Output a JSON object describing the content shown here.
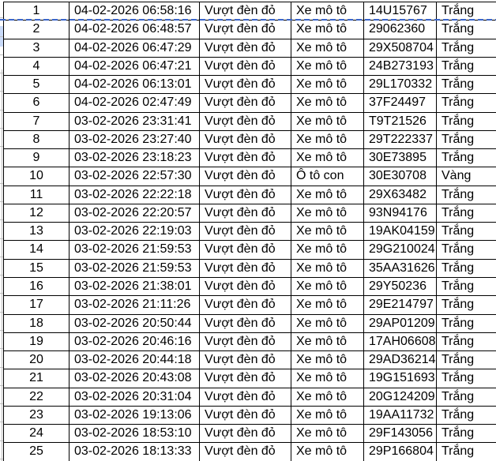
{
  "colors": {
    "grid_line": "#000000",
    "text": "#000000",
    "background": "#ffffff",
    "marquee_blue": "#3a66cc",
    "clipped_cell_blue": "#c9daf8",
    "clipped_line_gray": "#bfbfbf"
  },
  "table": {
    "rows": [
      {
        "index": "1",
        "datetime": "04-02-2026 06:58:16",
        "violation": "Vượt đèn đỏ",
        "vehicle_type": "Xe mô tô",
        "plate": "14U15767",
        "color": "Trắng"
      },
      {
        "index": "2",
        "datetime": "04-02-2026 06:48:57",
        "violation": "Vượt đèn đỏ",
        "vehicle_type": "Xe mô tô",
        "plate": "29062360",
        "color": "Trắng"
      },
      {
        "index": "3",
        "datetime": "04-02-2026 06:47:29",
        "violation": "Vượt đèn đỏ",
        "vehicle_type": "Xe mô tô",
        "plate": "29X508704",
        "color": "Trắng"
      },
      {
        "index": "4",
        "datetime": "04-02-2026 06:47:21",
        "violation": "Vượt đèn đỏ",
        "vehicle_type": "Xe mô tô",
        "plate": "24B273193",
        "color": "Trắng"
      },
      {
        "index": "5",
        "datetime": "04-02-2026 06:13:01",
        "violation": "Vượt đèn đỏ",
        "vehicle_type": "Xe mô tô",
        "plate": "29L170332",
        "color": "Trắng"
      },
      {
        "index": "6",
        "datetime": "04-02-2026 02:47:49",
        "violation": "Vượt đèn đỏ",
        "vehicle_type": "Xe mô tô",
        "plate": "37F24497",
        "color": "Trắng"
      },
      {
        "index": "7",
        "datetime": "03-02-2026 23:31:41",
        "violation": "Vượt đèn đỏ",
        "vehicle_type": "Xe mô tô",
        "plate": "T9T21526",
        "color": "Trắng"
      },
      {
        "index": "8",
        "datetime": "03-02-2026 23:27:40",
        "violation": "Vượt đèn đỏ",
        "vehicle_type": "Xe mô tô",
        "plate": "29T222337",
        "color": "Trắng"
      },
      {
        "index": "9",
        "datetime": "03-02-2026 23:18:23",
        "violation": "Vượt đèn đỏ",
        "vehicle_type": "Xe mô tô",
        "plate": "30E73895",
        "color": "Trắng"
      },
      {
        "index": "10",
        "datetime": "03-02-2026 22:57:30",
        "violation": "Vượt đèn đỏ",
        "vehicle_type": "Ô tô con",
        "plate": "30E30708",
        "color": "Vàng"
      },
      {
        "index": "11",
        "datetime": "03-02-2026 22:22:18",
        "violation": "Vượt đèn đỏ",
        "vehicle_type": "Xe mô tô",
        "plate": "29X63482",
        "color": "Trắng"
      },
      {
        "index": "12",
        "datetime": "03-02-2026 22:20:57",
        "violation": "Vượt đèn đỏ",
        "vehicle_type": "Xe mô tô",
        "plate": "93N94176",
        "color": "Trắng"
      },
      {
        "index": "13",
        "datetime": "03-02-2026 22:19:03",
        "violation": "Vượt đèn đỏ",
        "vehicle_type": "Xe mô tô",
        "plate": "19AK04159",
        "color": "Trắng"
      },
      {
        "index": "14",
        "datetime": "03-02-2026 21:59:53",
        "violation": "Vượt đèn đỏ",
        "vehicle_type": "Xe mô tô",
        "plate": "29G210024",
        "color": "Trắng"
      },
      {
        "index": "15",
        "datetime": "03-02-2026 21:59:53",
        "violation": "Vượt đèn đỏ",
        "vehicle_type": "Xe mô tô",
        "plate": "35AA31626",
        "color": "Trắng"
      },
      {
        "index": "16",
        "datetime": "03-02-2026 21:38:01",
        "violation": "Vượt đèn đỏ",
        "vehicle_type": "Xe mô tô",
        "plate": "29Y50236",
        "color": "Trắng"
      },
      {
        "index": "17",
        "datetime": "03-02-2026 21:11:26",
        "violation": "Vượt đèn đỏ",
        "vehicle_type": "Xe mô tô",
        "plate": "29E214797",
        "color": "Trắng"
      },
      {
        "index": "18",
        "datetime": "03-02-2026 20:50:44",
        "violation": "Vượt đèn đỏ",
        "vehicle_type": "Xe mô tô",
        "plate": "29AP01209",
        "color": "Trắng"
      },
      {
        "index": "19",
        "datetime": "03-02-2026 20:46:16",
        "violation": "Vượt đèn đỏ",
        "vehicle_type": "Xe mô tô",
        "plate": "17AH06608",
        "color": "Trắng"
      },
      {
        "index": "20",
        "datetime": "03-02-2026 20:44:18",
        "violation": "Vượt đèn đỏ",
        "vehicle_type": "Xe mô tô",
        "plate": "29AD36214",
        "color": "Trắng"
      },
      {
        "index": "21",
        "datetime": "03-02-2026 20:43:08",
        "violation": "Vượt đèn đỏ",
        "vehicle_type": "Xe mô tô",
        "plate": "19G151693",
        "color": "Trắng"
      },
      {
        "index": "22",
        "datetime": "03-02-2026 20:31:04",
        "violation": "Vượt đèn đỏ",
        "vehicle_type": "Xe mô tô",
        "plate": "20G124209",
        "color": "Trắng"
      },
      {
        "index": "23",
        "datetime": "03-02-2026 19:13:06",
        "violation": "Vượt đèn đỏ",
        "vehicle_type": "Xe mô tô",
        "plate": "19AA11732",
        "color": "Trắng"
      },
      {
        "index": "24",
        "datetime": "03-02-2026 18:53:10",
        "violation": "Vượt đèn đỏ",
        "vehicle_type": "Xe mô tô",
        "plate": "29F143056",
        "color": "Trắng"
      },
      {
        "index": "25",
        "datetime": "03-02-2026 18:13:33",
        "violation": "Vượt đèn đỏ",
        "vehicle_type": "Xe mô tô",
        "plate": "29P166804",
        "color": "Trắng"
      }
    ]
  }
}
